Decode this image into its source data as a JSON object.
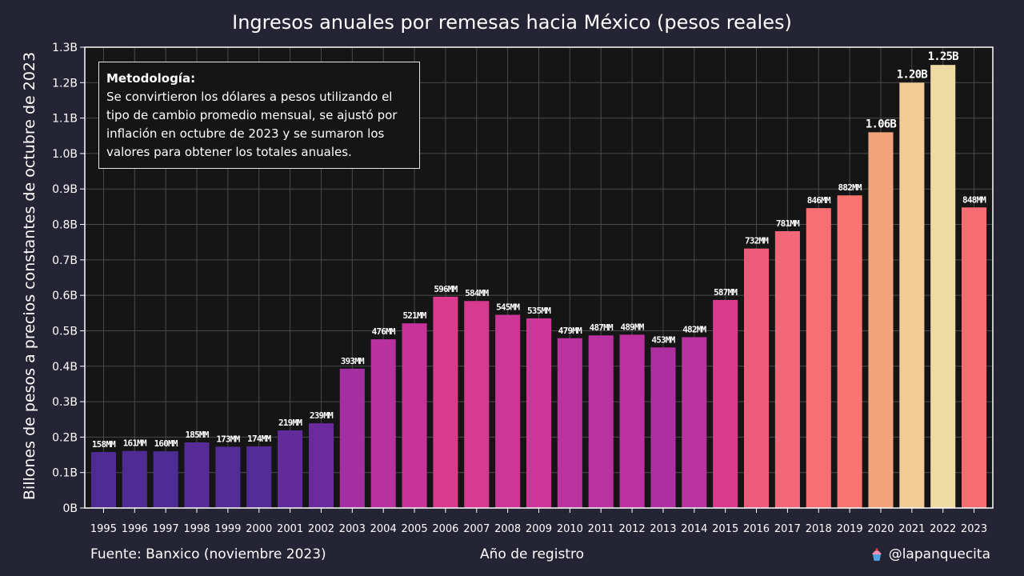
{
  "chart_data": {
    "type": "bar",
    "title": "Ingresos anuales por remesas hacia México (pesos reales)",
    "xlabel": "Año de registro",
    "ylabel": "Billones de pesos a precios constantes de octubre de 2023",
    "ylim": [
      0,
      1.3
    ],
    "yticks": [
      "0B",
      "0.1B",
      "0.2B",
      "0.3B",
      "0.4B",
      "0.5B",
      "0.6B",
      "0.7B",
      "0.8B",
      "0.9B",
      "1.0B",
      "1.1B",
      "1.2B",
      "1.3B"
    ],
    "grid": true,
    "categories": [
      "1995",
      "1996",
      "1997",
      "1998",
      "1999",
      "2000",
      "2001",
      "2002",
      "2003",
      "2004",
      "2005",
      "2006",
      "2007",
      "2008",
      "2009",
      "2010",
      "2011",
      "2012",
      "2013",
      "2014",
      "2015",
      "2016",
      "2017",
      "2018",
      "2019",
      "2020",
      "2021",
      "2022",
      "2023"
    ],
    "values": [
      0.158,
      0.161,
      0.16,
      0.185,
      0.173,
      0.174,
      0.219,
      0.239,
      0.393,
      0.476,
      0.521,
      0.596,
      0.584,
      0.545,
      0.535,
      0.479,
      0.487,
      0.489,
      0.453,
      0.482,
      0.587,
      0.732,
      0.781,
      0.846,
      0.882,
      1.06,
      1.2,
      1.25,
      0.848
    ],
    "data_labels": [
      "158MM",
      "161MM",
      "160MM",
      "185MM",
      "173MM",
      "174MM",
      "219MM",
      "239MM",
      "393MM",
      "476MM",
      "521MM",
      "596MM",
      "584MM",
      "545MM",
      "535MM",
      "479MM",
      "487MM",
      "489MM",
      "453MM",
      "482MM",
      "587MM",
      "732MM",
      "781MM",
      "846MM",
      "882MM",
      "1.06B",
      "1.20B",
      "1.25B",
      "848MM"
    ],
    "colors": [
      "#4e2c94",
      "#4f2c94",
      "#4f2c94",
      "#582c98",
      "#532c96",
      "#532c96",
      "#622b9b",
      "#6b2a9e",
      "#a42fa0",
      "#b8329f",
      "#c6339b",
      "#d93a8e",
      "#d83a90",
      "#cd3597",
      "#cc3698",
      "#b9339f",
      "#ba329f",
      "#bb329f",
      "#ae30a0",
      "#b8339f",
      "#db3a8d",
      "#ef5a7a",
      "#f46778",
      "#f86f73",
      "#f8766f",
      "#f4a47a",
      "#f2cb96",
      "#eedba4",
      "#f86c74"
    ]
  },
  "methodology": {
    "title": "Metodología:",
    "text": "Se convirtieron los dólares a pesos utilizando el tipo de cambio promedio mensual, se ajustó por inflación en octubre de 2023 y se sumaron los valores para obtener los totales anuales."
  },
  "footer": {
    "source": "Fuente: Banxico (noviembre 2023)",
    "credit": "@lapanquecita",
    "credit_icon": "cupcake-icon"
  }
}
